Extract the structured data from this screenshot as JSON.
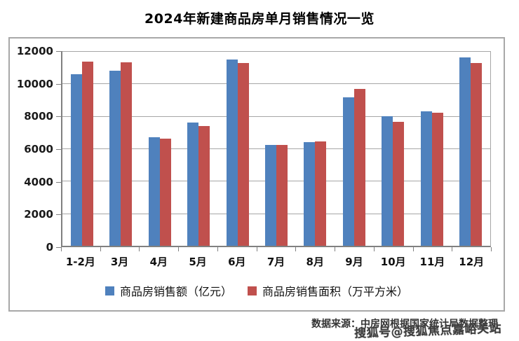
{
  "title": "2024年新建商品房单月销售情况一览",
  "source_note": "数据来源：中房网根据国家统计局数据整理",
  "watermark": "搜狐号@搜狐焦点嘉峪关站",
  "colors": {
    "series_amount": "#4F81BD",
    "series_area": "#C0504D",
    "gridline": "#A6A6A6",
    "axis": "#808080",
    "frame_border": "#A8A8A8"
  },
  "chart_data": {
    "type": "bar",
    "title": "2024年新建商品房单月销售情况一览",
    "categories": [
      "1-2月",
      "3月",
      "4月",
      "5月",
      "6月",
      "7月",
      "8月",
      "9月",
      "10月",
      "11月",
      "12月"
    ],
    "series": [
      {
        "name": "商品房销售额（亿元）",
        "color": "#4F81BD",
        "values": [
          10566,
          10789,
          6712,
          7598,
          11468,
          6197,
          6393,
          9157,
          7975,
          8270,
          11625
        ]
      },
      {
        "name": "商品房销售面积（万平方米）",
        "color": "#C0504D",
        "values": [
          11369,
          11299,
          6584,
          7390,
          11274,
          6233,
          6453,
          9682,
          7646,
          8188,
          11267
        ]
      }
    ],
    "xlabel": "",
    "ylabel": "",
    "ylim": [
      0,
      12000
    ],
    "yticks": [
      0,
      2000,
      4000,
      6000,
      8000,
      10000,
      12000
    ],
    "grid": "horizontal",
    "legend_position": "bottom"
  }
}
